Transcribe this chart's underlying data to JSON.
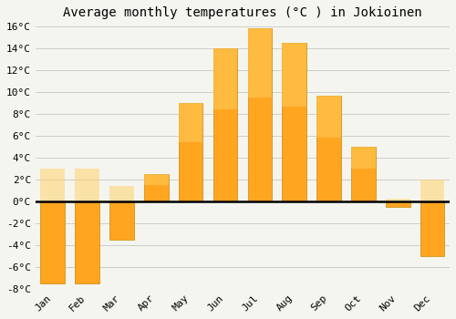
{
  "title": "Average monthly temperatures (°C ) in Jokioinen",
  "months": [
    "Jan",
    "Feb",
    "Mar",
    "Apr",
    "May",
    "Jun",
    "Jul",
    "Aug",
    "Sep",
    "Oct",
    "Nov",
    "Dec"
  ],
  "values": [
    -7.5,
    -7.5,
    -3.5,
    2.5,
    9.0,
    14.0,
    15.8,
    14.5,
    9.7,
    5.0,
    -0.5,
    -5.0
  ],
  "bar_color": "#FFA520",
  "bar_edge_color": "#CC8800",
  "background_color": "#f5f5f0",
  "plot_bg_color": "#f5f5f0",
  "grid_color": "#cccccc",
  "ylim": [
    -8,
    16
  ],
  "yticks": [
    -8,
    -6,
    -4,
    -2,
    0,
    2,
    4,
    6,
    8,
    10,
    12,
    14,
    16
  ],
  "title_fontsize": 10,
  "tick_fontsize": 8,
  "figsize": [
    5.0,
    3.5
  ],
  "dpi": 100
}
